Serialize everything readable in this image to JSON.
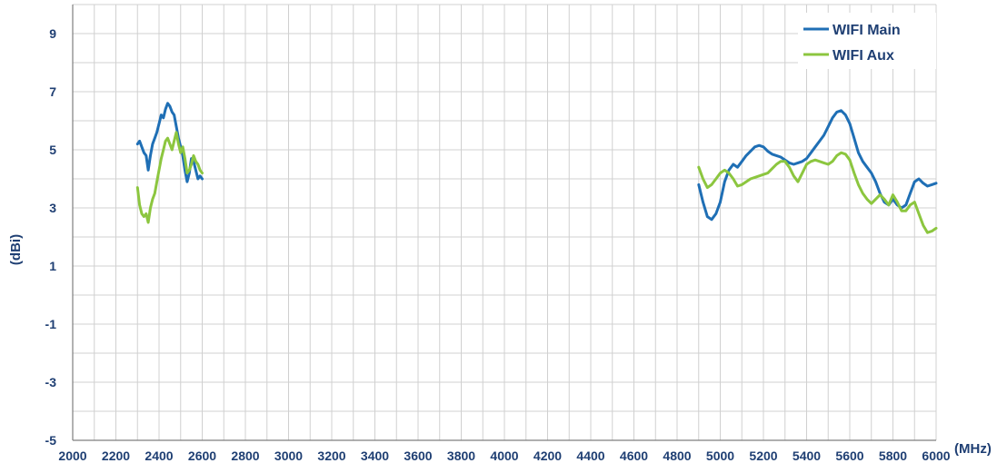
{
  "chart_data": {
    "type": "line",
    "title": "",
    "xlabel": "(MHz)",
    "ylabel": "(dBi)",
    "xlim": [
      2000,
      6000
    ],
    "ylim": [
      -5,
      10
    ],
    "grid": true,
    "legend_position": "top-right",
    "x_ticks": [
      2000,
      2200,
      2400,
      2600,
      2800,
      3000,
      3200,
      3400,
      3600,
      3800,
      4000,
      4200,
      4400,
      4600,
      4800,
      5000,
      5200,
      5400,
      5600,
      5800,
      6000
    ],
    "y_ticks": [
      -5,
      -3,
      -1,
      1,
      3,
      5,
      7,
      9
    ],
    "series": [
      {
        "name": "WIFI Main",
        "color": "#1f6fb5",
        "segments": [
          {
            "x": [
              2300,
              2310,
              2320,
              2330,
              2340,
              2350,
              2360,
              2370,
              2380,
              2390,
              2400,
              2410,
              2420,
              2430,
              2440,
              2450,
              2460,
              2470,
              2480,
              2490,
              2500,
              2510,
              2520,
              2530,
              2540,
              2550,
              2560,
              2570,
              2580,
              2590,
              2600
            ],
            "y": [
              5.2,
              5.3,
              5.1,
              4.9,
              4.8,
              4.3,
              4.8,
              5.2,
              5.4,
              5.6,
              5.9,
              6.2,
              6.1,
              6.4,
              6.6,
              6.5,
              6.3,
              6.2,
              5.8,
              5.4,
              5.1,
              4.8,
              4.3,
              3.9,
              4.2,
              4.7,
              4.6,
              4.3,
              4.0,
              4.1,
              4.0
            ]
          },
          {
            "x": [
              4900,
              4920,
              4940,
              4960,
              4980,
              5000,
              5020,
              5040,
              5060,
              5080,
              5100,
              5120,
              5140,
              5160,
              5180,
              5200,
              5220,
              5240,
              5260,
              5280,
              5300,
              5320,
              5340,
              5360,
              5380,
              5400,
              5420,
              5440,
              5460,
              5480,
              5500,
              5520,
              5540,
              5560,
              5580,
              5600,
              5620,
              5640,
              5660,
              5680,
              5700,
              5720,
              5740,
              5760,
              5780,
              5800,
              5820,
              5840,
              5860,
              5880,
              5900,
              5920,
              5940,
              5960,
              5980,
              6000
            ],
            "y": [
              3.8,
              3.2,
              2.7,
              2.6,
              2.8,
              3.2,
              3.9,
              4.3,
              4.5,
              4.4,
              4.6,
              4.8,
              4.95,
              5.1,
              5.15,
              5.1,
              4.95,
              4.85,
              4.8,
              4.75,
              4.65,
              4.55,
              4.5,
              4.55,
              4.6,
              4.7,
              4.9,
              5.1,
              5.3,
              5.5,
              5.8,
              6.1,
              6.3,
              6.35,
              6.2,
              5.9,
              5.4,
              4.9,
              4.6,
              4.4,
              4.2,
              3.9,
              3.5,
              3.2,
              3.1,
              3.3,
              3.1,
              3.0,
              3.1,
              3.5,
              3.9,
              4.0,
              3.85,
              3.75,
              3.8,
              3.85
            ]
          }
        ]
      },
      {
        "name": "WIFI Aux",
        "color": "#8cc63f",
        "segments": [
          {
            "x": [
              2300,
              2310,
              2320,
              2330,
              2340,
              2350,
              2360,
              2370,
              2380,
              2390,
              2400,
              2410,
              2420,
              2430,
              2440,
              2450,
              2460,
              2470,
              2480,
              2490,
              2500,
              2510,
              2520,
              2530,
              2540,
              2550,
              2560,
              2570,
              2580,
              2590,
              2600
            ],
            "y": [
              3.7,
              3.1,
              2.8,
              2.7,
              2.8,
              2.5,
              3.0,
              3.3,
              3.5,
              3.9,
              4.3,
              4.7,
              5.0,
              5.3,
              5.4,
              5.2,
              5.0,
              5.3,
              5.6,
              5.2,
              4.9,
              5.1,
              4.7,
              4.2,
              4.3,
              4.5,
              4.8,
              4.6,
              4.5,
              4.3,
              4.2
            ]
          },
          {
            "x": [
              4900,
              4920,
              4940,
              4960,
              4980,
              5000,
              5020,
              5040,
              5060,
              5080,
              5100,
              5120,
              5140,
              5160,
              5180,
              5200,
              5220,
              5240,
              5260,
              5280,
              5300,
              5320,
              5340,
              5360,
              5380,
              5400,
              5420,
              5440,
              5460,
              5480,
              5500,
              5520,
              5540,
              5560,
              5580,
              5600,
              5620,
              5640,
              5660,
              5680,
              5700,
              5720,
              5740,
              5760,
              5780,
              5800,
              5820,
              5840,
              5860,
              5880,
              5900,
              5920,
              5940,
              5960,
              5980,
              6000
            ],
            "y": [
              4.4,
              4.0,
              3.7,
              3.8,
              4.0,
              4.2,
              4.3,
              4.2,
              4.0,
              3.75,
              3.8,
              3.9,
              4.0,
              4.05,
              4.1,
              4.15,
              4.2,
              4.35,
              4.5,
              4.6,
              4.6,
              4.4,
              4.1,
              3.9,
              4.2,
              4.5,
              4.6,
              4.65,
              4.6,
              4.55,
              4.5,
              4.6,
              4.8,
              4.9,
              4.85,
              4.65,
              4.2,
              3.8,
              3.5,
              3.3,
              3.15,
              3.3,
              3.45,
              3.3,
              3.1,
              3.45,
              3.2,
              2.9,
              2.9,
              3.1,
              3.2,
              2.8,
              2.4,
              2.15,
              2.2,
              2.3
            ]
          }
        ]
      }
    ]
  }
}
